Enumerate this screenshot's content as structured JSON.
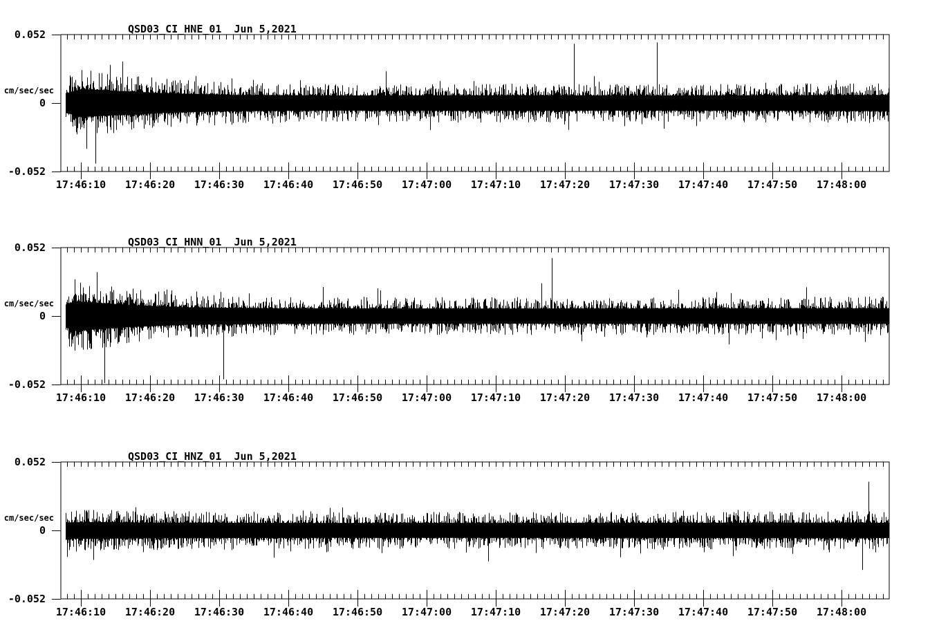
{
  "page": {
    "background_color": "#ffffff",
    "foreground_color": "#000000"
  },
  "chart_data": [
    {
      "type": "line",
      "subtype": "seismogram-minmax-trace",
      "title": "QSD03_CI_HNE_01  Jun 5,2021",
      "station_channel": "QSD03_CI_HNE_01",
      "date": "Jun 5,2021",
      "ylabel": "cm/sec/sec",
      "ylim": [
        -0.052,
        0.052
      ],
      "y_tick_labels": [
        "0.052",
        "0",
        "-0.052"
      ],
      "x_tick_labels": [
        "17:46:10",
        "17:46:20",
        "17:46:30",
        "17:46:40",
        "17:46:50",
        "17:47:00",
        "17:47:10",
        "17:47:20",
        "17:47:30",
        "17:47:40",
        "17:47:50",
        "17:48:00"
      ],
      "x_minor_step_s": 1,
      "x_major_step_s": 10,
      "window_start": "17:46:07",
      "window_seconds": 120,
      "grid": false,
      "legend": "none",
      "signal": "continuous broadband ground-motion noise, burst at record start",
      "envelope_t_amp": [
        [
          0,
          0.03
        ],
        [
          3,
          0.048
        ],
        [
          8,
          0.042
        ],
        [
          15,
          0.034
        ],
        [
          25,
          0.028
        ],
        [
          40,
          0.026
        ],
        [
          60,
          0.027
        ],
        [
          90,
          0.026
        ],
        [
          120,
          0.028
        ]
      ],
      "events_t_amp": [
        [
          74.2,
          0.045
        ],
        [
          86.2,
          0.046
        ],
        [
          5.0,
          -0.046
        ]
      ],
      "seed": 101
    },
    {
      "type": "line",
      "subtype": "seismogram-minmax-trace",
      "title": "QSD03_CI_HNN_01  Jun 5,2021",
      "station_channel": "QSD03_CI_HNN_01",
      "date": "Jun 5,2021",
      "ylabel": "cm/sec/sec",
      "ylim": [
        -0.052,
        0.052
      ],
      "y_tick_labels": [
        "0.052",
        "0",
        "-0.052"
      ],
      "x_tick_labels": [
        "17:46:10",
        "17:46:20",
        "17:46:30",
        "17:46:40",
        "17:46:50",
        "17:47:00",
        "17:47:10",
        "17:47:20",
        "17:47:30",
        "17:47:40",
        "17:47:50",
        "17:48:00"
      ],
      "x_minor_step_s": 1,
      "x_major_step_s": 10,
      "window_start": "17:46:07",
      "window_seconds": 120,
      "grid": false,
      "legend": "none",
      "signal": "continuous broadband ground-motion noise, strong burst at record start",
      "envelope_t_amp": [
        [
          0,
          0.034
        ],
        [
          2,
          0.051
        ],
        [
          5,
          0.046
        ],
        [
          10,
          0.038
        ],
        [
          18,
          0.03
        ],
        [
          30,
          0.027
        ],
        [
          60,
          0.026
        ],
        [
          120,
          0.027
        ]
      ],
      "events_t_amp": [
        [
          6.3,
          -0.052
        ],
        [
          23.5,
          -0.048
        ],
        [
          71.0,
          0.044
        ]
      ],
      "seed": 202
    },
    {
      "type": "line",
      "subtype": "seismogram-minmax-trace",
      "title": "QSD03_CI_HNZ_01  Jun 5,2021",
      "station_channel": "QSD03_CI_HNZ_01",
      "date": "Jun 5,2021",
      "ylabel": "cm/sec/sec",
      "ylim": [
        -0.052,
        0.052
      ],
      "y_tick_labels": [
        "0.052",
        "0",
        "-0.052"
      ],
      "x_tick_labels": [
        "17:46:10",
        "17:46:20",
        "17:46:30",
        "17:46:40",
        "17:46:50",
        "17:47:00",
        "17:47:10",
        "17:47:20",
        "17:47:30",
        "17:47:40",
        "17:47:50",
        "17:48:00"
      ],
      "x_minor_step_s": 1,
      "x_major_step_s": 10,
      "window_start": "17:46:07",
      "window_seconds": 120,
      "grid": false,
      "legend": "none",
      "signal": "continuous broadband ground-motion noise, uniform level, isolated late spike",
      "envelope_t_amp": [
        [
          0,
          0.027
        ],
        [
          5,
          0.029
        ],
        [
          12,
          0.027
        ],
        [
          40,
          0.0255
        ],
        [
          80,
          0.026
        ],
        [
          115,
          0.027
        ],
        [
          120,
          0.026
        ]
      ],
      "events_t_amp": [
        [
          116.8,
          0.037
        ],
        [
          115.9,
          -0.03
        ]
      ],
      "seed": 303
    }
  ]
}
